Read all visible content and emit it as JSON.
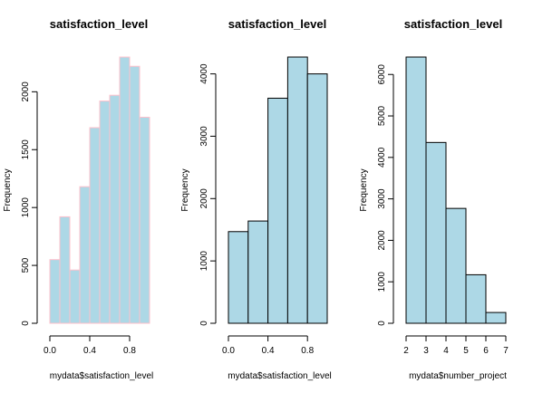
{
  "chart_data": [
    {
      "type": "bar",
      "title": "satisfaction_level",
      "xlabel": "mydata$satisfaction_level",
      "ylabel": "Frequency",
      "bar_fill": "#add8e6",
      "bar_border": "#ffc0cb",
      "bins": [
        {
          "x0": 0.0,
          "x1": 0.1,
          "count": 550
        },
        {
          "x0": 0.1,
          "x1": 0.2,
          "count": 920
        },
        {
          "x0": 0.2,
          "x1": 0.3,
          "count": 460
        },
        {
          "x0": 0.3,
          "x1": 0.4,
          "count": 1180
        },
        {
          "x0": 0.4,
          "x1": 0.5,
          "count": 1690
        },
        {
          "x0": 0.5,
          "x1": 0.6,
          "count": 1920
        },
        {
          "x0": 0.6,
          "x1": 0.7,
          "count": 1970
        },
        {
          "x0": 0.7,
          "x1": 0.8,
          "count": 2300
        },
        {
          "x0": 0.8,
          "x1": 0.9,
          "count": 2220
        },
        {
          "x0": 0.9,
          "x1": 1.0,
          "count": 1780
        }
      ],
      "xlim": [
        -0.07,
        1.07
      ],
      "ylim": [
        0,
        2300
      ],
      "x_ticks": [
        0.0,
        0.4,
        0.8
      ],
      "x_tick_labels": [
        "0.0",
        "0.4",
        "0.8"
      ],
      "y_ticks": [
        0,
        500,
        1000,
        1500,
        2000
      ],
      "y_tick_labels": [
        "0",
        "500",
        "1000",
        "1500",
        "2000"
      ]
    },
    {
      "type": "bar",
      "title": "satisfaction_level",
      "xlabel": "mydata$satisfaction_level",
      "ylabel": "Frequency",
      "bar_fill": "#add8e6",
      "bar_border": "#000000",
      "bins": [
        {
          "x0": 0.0,
          "x1": 0.2,
          "count": 1470
        },
        {
          "x0": 0.2,
          "x1": 0.4,
          "count": 1640
        },
        {
          "x0": 0.4,
          "x1": 0.6,
          "count": 3610
        },
        {
          "x0": 0.6,
          "x1": 0.8,
          "count": 4270
        },
        {
          "x0": 0.8,
          "x1": 1.0,
          "count": 4000
        }
      ],
      "xlim": [
        -0.07,
        1.07
      ],
      "ylim": [
        0,
        4270
      ],
      "x_ticks": [
        0.0,
        0.4,
        0.8
      ],
      "x_tick_labels": [
        "0.0",
        "0.4",
        "0.8"
      ],
      "y_ticks": [
        0,
        1000,
        2000,
        3000,
        4000
      ],
      "y_tick_labels": [
        "0",
        "1000",
        "2000",
        "3000",
        "4000"
      ]
    },
    {
      "type": "bar",
      "title": "satisfaction_level",
      "xlabel": "mydata$number_project",
      "ylabel": "Frequency",
      "bar_fill": "#add8e6",
      "bar_border": "#000000",
      "bins": [
        {
          "x0": 2,
          "x1": 3,
          "count": 6420
        },
        {
          "x0": 3,
          "x1": 4,
          "count": 4360
        },
        {
          "x0": 4,
          "x1": 5,
          "count": 2770
        },
        {
          "x0": 5,
          "x1": 6,
          "count": 1170
        },
        {
          "x0": 6,
          "x1": 7,
          "count": 260
        }
      ],
      "xlim": [
        1.8,
        7.2
      ],
      "ylim": [
        0,
        6420
      ],
      "x_ticks": [
        2,
        3,
        4,
        5,
        6,
        7
      ],
      "x_tick_labels": [
        "2",
        "3",
        "4",
        "5",
        "6",
        "7"
      ],
      "y_ticks": [
        0,
        1000,
        2000,
        3000,
        4000,
        5000,
        6000
      ],
      "y_tick_labels": [
        "0",
        "1000",
        "2000",
        "3000",
        "4000",
        "5000",
        "6000"
      ]
    }
  ]
}
